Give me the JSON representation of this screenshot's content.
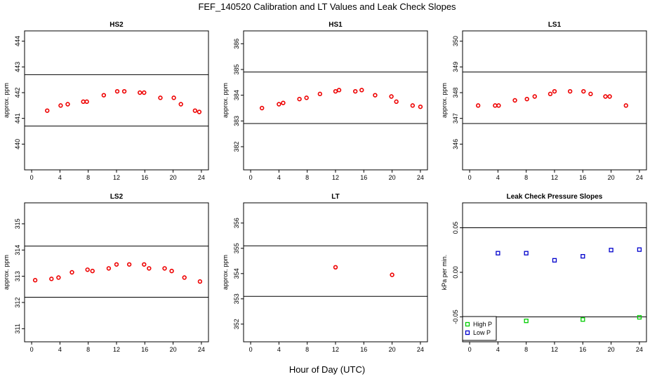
{
  "figure": {
    "title": "FEF_140520  Calibration and LT Values and Leak Check Slopes",
    "xlabel": "Hour of Day (UTC)"
  },
  "colors": {
    "point": "#ee0000",
    "high_p": "#00cc00",
    "low_p": "#0000cc",
    "line": "#000000"
  },
  "chart_data": [
    {
      "type": "scatter",
      "title": "HS2",
      "ylabel": "approx. ppm",
      "xlim": [
        -1,
        25
      ],
      "ylim": [
        439,
        444.4
      ],
      "xticks": [
        "0",
        "4",
        "8",
        "12",
        "16",
        "20",
        "24"
      ],
      "yticks": [
        "440",
        "441",
        "442",
        "443",
        "444"
      ],
      "hlines": [
        440.7,
        442.7
      ],
      "marker": "circle",
      "color": "#ee0000",
      "x": [
        2.2,
        4.1,
        5.1,
        7.3,
        7.8,
        10.2,
        12.1,
        13.1,
        15.3,
        15.9,
        18.2,
        20.1,
        21.1,
        23.1,
        23.7
      ],
      "y": [
        441.3,
        441.5,
        441.55,
        441.65,
        441.65,
        441.9,
        442.05,
        442.05,
        442.0,
        442.0,
        441.8,
        441.8,
        441.55,
        441.3,
        441.25
      ]
    },
    {
      "type": "scatter",
      "title": "HS1",
      "ylabel": "approx. ppm",
      "xlim": [
        -1,
        25
      ],
      "ylim": [
        381.1,
        386.5
      ],
      "xticks": [
        "0",
        "4",
        "8",
        "12",
        "16",
        "20",
        "24"
      ],
      "yticks": [
        "382",
        "383",
        "384",
        "385",
        "386"
      ],
      "hlines": [
        382.9,
        384.9
      ],
      "marker": "circle",
      "color": "#ee0000",
      "x": [
        1.6,
        4.0,
        4.6,
        6.9,
        7.9,
        9.8,
        12.0,
        12.5,
        14.8,
        15.7,
        17.6,
        19.9,
        20.6,
        22.9,
        24.0
      ],
      "y": [
        383.5,
        383.65,
        383.7,
        383.85,
        383.9,
        384.05,
        384.15,
        384.2,
        384.15,
        384.2,
        384.0,
        383.95,
        383.75,
        383.6,
        383.55
      ]
    },
    {
      "type": "scatter",
      "title": "LS1",
      "ylabel": "approx. ppm",
      "xlim": [
        -1,
        25
      ],
      "ylim": [
        345,
        350.4
      ],
      "xticks": [
        "0",
        "4",
        "8",
        "12",
        "16",
        "20",
        "24"
      ],
      "yticks": [
        "346",
        "347",
        "348",
        "349",
        "350"
      ],
      "hlines": [
        346.8,
        348.8
      ],
      "marker": "circle",
      "color": "#ee0000",
      "x": [
        1.2,
        3.6,
        4.1,
        6.4,
        8.1,
        9.2,
        11.4,
        12.0,
        14.2,
        16.1,
        17.1,
        19.2,
        19.8,
        22.1
      ],
      "y": [
        347.5,
        347.5,
        347.5,
        347.7,
        347.75,
        347.85,
        347.95,
        348.05,
        348.05,
        348.05,
        347.95,
        347.85,
        347.85,
        347.5
      ]
    },
    {
      "type": "scatter",
      "title": "LS2",
      "ylabel": "approx. ppm",
      "xlim": [
        -1,
        25
      ],
      "ylim": [
        310.5,
        315.8
      ],
      "xticks": [
        "0",
        "4",
        "8",
        "12",
        "16",
        "20",
        "24"
      ],
      "yticks": [
        "311",
        "312",
        "313",
        "314",
        "315"
      ],
      "hlines": [
        312.2,
        314.15
      ],
      "marker": "circle",
      "color": "#ee0000",
      "x": [
        0.5,
        2.8,
        3.8,
        5.7,
        7.9,
        8.6,
        10.9,
        12.0,
        13.8,
        15.9,
        16.6,
        18.8,
        19.8,
        21.6,
        23.8
      ],
      "y": [
        312.85,
        312.9,
        312.95,
        313.15,
        313.25,
        313.2,
        313.3,
        313.45,
        313.45,
        313.45,
        313.3,
        313.3,
        313.2,
        312.95,
        312.8
      ]
    },
    {
      "type": "scatter",
      "title": "LT",
      "ylabel": "approx. ppm",
      "xlim": [
        -1,
        25
      ],
      "ylim": [
        351.3,
        356.8
      ],
      "xticks": [
        "0",
        "4",
        "8",
        "12",
        "16",
        "20",
        "24"
      ],
      "yticks": [
        "352",
        "353",
        "354",
        "355",
        "356"
      ],
      "hlines": [
        353.1,
        355.1
      ],
      "marker": "circle",
      "color": "#ee0000",
      "x": [
        12.0,
        20.0
      ],
      "y": [
        354.25,
        353.95
      ]
    },
    {
      "type": "scatter",
      "title": "Leak Check Pressure Slopes",
      "ylabel": "kPa per min.",
      "xlim": [
        -1,
        25
      ],
      "ylim": [
        -0.078,
        0.078
      ],
      "xticks": [
        "0",
        "4",
        "8",
        "12",
        "16",
        "20",
        "24"
      ],
      "yticks": [
        "-0.05",
        "0.00",
        "0.05"
      ],
      "hlines": [
        -0.05,
        0.05
      ],
      "marker": "square",
      "legend": {
        "position": "bottom-left",
        "entries": [
          "High P",
          "Low P"
        ]
      },
      "series": [
        {
          "name": "High P",
          "color": "#00cc00",
          "x": [
            8,
            16,
            24
          ],
          "y": [
            -0.0545,
            -0.053,
            -0.0505
          ]
        },
        {
          "name": "Low P",
          "color": "#0000cc",
          "x": [
            4,
            8,
            12,
            16,
            20,
            24
          ],
          "y": [
            0.0215,
            0.0215,
            0.0135,
            0.018,
            0.025,
            0.0255
          ]
        }
      ]
    }
  ]
}
